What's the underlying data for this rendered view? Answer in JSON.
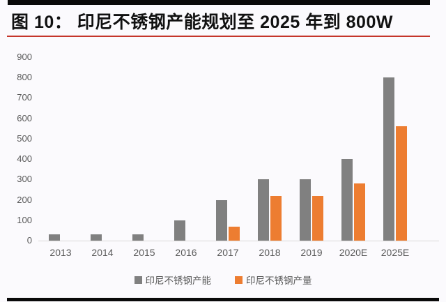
{
  "header": {
    "title": "图 10： 印尼不锈钢产能规划至 2025 年到 800W"
  },
  "colors": {
    "capacity_gray": "#808080",
    "production_orange": "#ed7d31",
    "title_underline_red": "#c5352a",
    "rule_black": "#0a0a0a",
    "axis_text": "#595959",
    "axis_line": "#d9d9d9",
    "background": "#fbfafd"
  },
  "chart_data": {
    "type": "bar",
    "title": "印尼不锈钢产能规划至 2025 年到 800W",
    "categories": [
      "2013",
      "2014",
      "2015",
      "2016",
      "2017",
      "2018",
      "2019",
      "2020E",
      "2025E"
    ],
    "series": [
      {
        "name": "印尼不锈钢产能",
        "color": "#808080",
        "values": [
          30,
          30,
          30,
          100,
          200,
          300,
          300,
          400,
          800
        ]
      },
      {
        "name": "印尼不锈钢产量",
        "color": "#ed7d31",
        "values": [
          null,
          null,
          null,
          null,
          70,
          220,
          220,
          280,
          560
        ]
      }
    ],
    "xlabel": "",
    "ylabel": "",
    "ylim": [
      0,
      900
    ],
    "yticks": [
      900,
      800,
      700,
      600,
      500,
      400,
      300,
      200,
      100,
      0
    ],
    "grid": false,
    "legend_position": "bottom"
  }
}
